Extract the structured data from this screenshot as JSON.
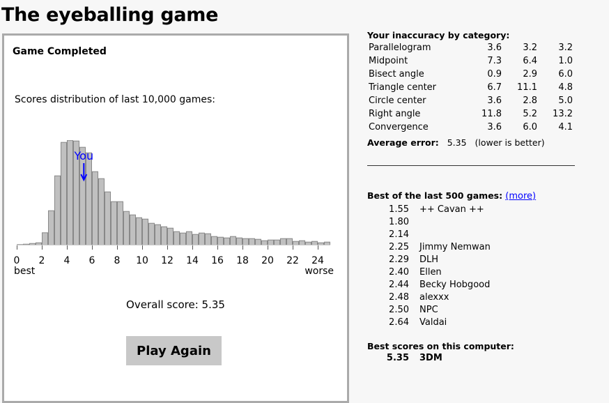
{
  "title": "The eyeballing game",
  "panel": {
    "status": "Game Completed",
    "distribution_label": "Scores distribution of last 10,000 games:",
    "you_label": "You",
    "overall_score": "Overall score: 5.35",
    "play_again": "Play Again"
  },
  "chart_data": {
    "type": "bar",
    "title": "",
    "x_start": [
      0,
      0.5,
      1,
      1.5,
      2,
      2.5,
      3,
      3.5,
      4,
      4.5,
      5,
      5.5,
      6,
      6.5,
      7,
      7.5,
      8,
      8.5,
      9,
      9.5,
      10,
      10.5,
      11,
      11.5,
      12,
      12.5,
      13,
      13.5,
      14,
      14.5,
      15,
      15.5,
      16,
      16.5,
      17,
      17.5,
      18,
      18.5,
      19,
      19.5,
      20,
      20.5,
      21,
      21.5,
      22,
      22.5,
      23,
      23.5,
      24,
      24.5
    ],
    "bin_width": 0.5,
    "values": [
      0.7,
      1.3,
      2.3,
      3.3,
      17.7,
      49.3,
      99.3,
      147.3,
      150.3,
      149.3,
      140.3,
      132.3,
      105.3,
      95.3,
      76.3,
      62.3,
      62.3,
      48.3,
      43.3,
      39.3,
      37.3,
      31.3,
      29.3,
      26.3,
      24.3,
      19.3,
      17.3,
      19.3,
      15.3,
      17.3,
      16.3,
      12.3,
      11.3,
      10.3,
      12.3,
      10.3,
      9.3,
      9.3,
      8.3,
      6.3,
      7.3,
      7.3,
      9.3,
      9.3,
      5.3,
      6.3,
      4.3,
      5.3,
      3.3,
      4.3
    ],
    "you_marker": 5.35,
    "xticks": [
      0,
      2,
      4,
      6,
      8,
      10,
      12,
      14,
      16,
      18,
      20,
      22,
      24
    ],
    "xlabel_left": "best",
    "xlabel_right": "worse",
    "xlim": [
      0,
      25
    ],
    "bar_color": "#c0c0c0",
    "bar_border": "#888888",
    "marker_color": "#0000ff"
  },
  "inaccuracy": {
    "heading": "Your inaccuracy by category:",
    "rows": [
      {
        "name": "Parallelogram",
        "v": [
          "3.6",
          "3.2",
          "3.2"
        ]
      },
      {
        "name": "Midpoint",
        "v": [
          "7.3",
          "6.4",
          "1.0"
        ]
      },
      {
        "name": "Bisect angle",
        "v": [
          "0.9",
          "2.9",
          "6.0"
        ]
      },
      {
        "name": "Triangle center",
        "v": [
          "6.7",
          "11.1",
          "4.8"
        ]
      },
      {
        "name": "Circle center",
        "v": [
          "3.6",
          "2.8",
          "5.0"
        ]
      },
      {
        "name": "Right angle",
        "v": [
          "11.8",
          "5.2",
          "13.2"
        ]
      },
      {
        "name": "Convergence",
        "v": [
          "3.6",
          "6.0",
          "4.1"
        ]
      }
    ],
    "avg_label": "Average error:",
    "avg_value": "5.35",
    "avg_note": "(lower is better)"
  },
  "best500": {
    "heading": "Best of the last 500 games:",
    "more": "(more)",
    "rows": [
      [
        "1.55",
        "++ Cavan ++"
      ],
      [
        "1.80",
        ""
      ],
      [
        "2.14",
        ""
      ],
      [
        "2.25",
        "Jimmy Nemwan"
      ],
      [
        "2.29",
        "DLH"
      ],
      [
        "2.40",
        "Ellen"
      ],
      [
        "2.44",
        "Becky Hobgood"
      ],
      [
        "2.48",
        "alexxx"
      ],
      [
        "2.50",
        "NPC"
      ],
      [
        "2.64",
        "Valdai"
      ]
    ]
  },
  "local": {
    "heading": "Best scores on this computer:",
    "rows": [
      [
        "5.35",
        "3DM"
      ]
    ]
  }
}
